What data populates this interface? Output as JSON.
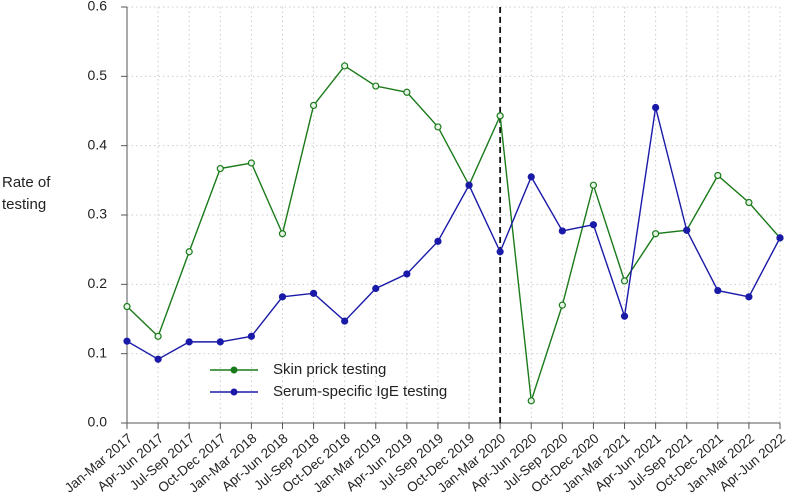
{
  "chart_data": {
    "type": "line",
    "ylabel": "Rate of testing",
    "categories": [
      "Jan-Mar 2017",
      "Apr-Jun 2017",
      "Jul-Sep 2017",
      "Oct-Dec 2017",
      "Jan-Mar 2018",
      "Apr-Jun 2018",
      "Jul-Sep 2018",
      "Oct-Dec 2018",
      "Jan-Mar 2019",
      "Apr-Jun 2019",
      "Jul-Sep 2019",
      "Oct-Dec 2019",
      "Jan-Mar 2020",
      "Apr-Jun 2020",
      "Jul-Sep 2020",
      "Oct-Dec 2020",
      "Jan-Mar 2021",
      "Apr-Jun 2021",
      "Jul-Sep 2021",
      "Oct-Dec 2021",
      "Jan-Mar 2022",
      "Apr-Jun 2022"
    ],
    "series": [
      {
        "name": "Skin prick testing",
        "color": "#1a7a1a",
        "values": [
          0.168,
          0.125,
          0.247,
          0.367,
          0.375,
          0.273,
          0.458,
          0.515,
          0.486,
          0.477,
          0.427,
          0.343,
          0.443,
          0.032,
          0.17,
          0.343,
          0.205,
          0.273,
          0.278,
          0.357,
          0.318,
          0.267
        ]
      },
      {
        "name": "Serum-specific IgE testing",
        "color": "#1a1aa8",
        "values": [
          0.118,
          0.092,
          0.117,
          0.117,
          0.125,
          0.182,
          0.187,
          0.147,
          0.194,
          0.215,
          0.262,
          0.343,
          0.247,
          0.355,
          0.277,
          0.286,
          0.154,
          0.455,
          0.278,
          0.191,
          0.182,
          0.267
        ]
      }
    ],
    "ylim": [
      0,
      0.6
    ],
    "yticks": [
      {
        "value": 0,
        "label": "0.0"
      },
      0.1,
      0.2,
      0.3,
      0.4,
      0.5,
      0.6
    ],
    "grid": true,
    "vline": "Jan-Mar 2020"
  }
}
